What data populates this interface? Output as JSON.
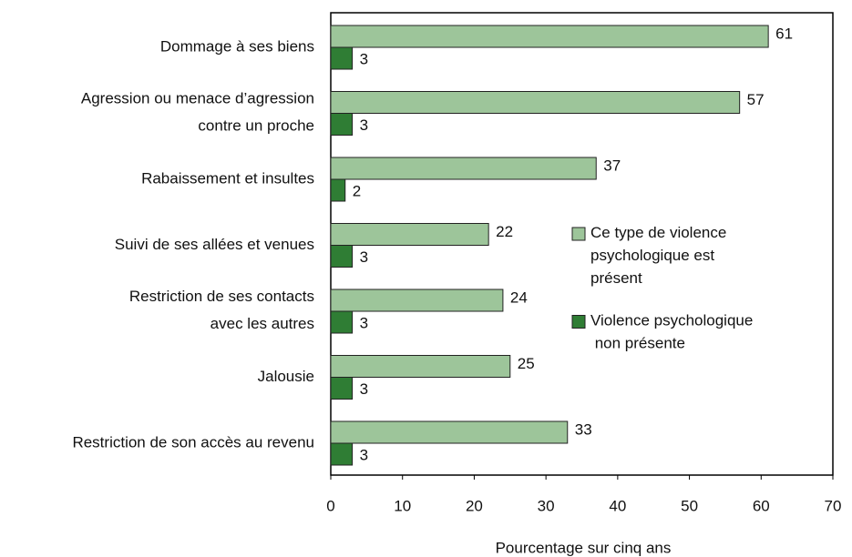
{
  "chart_data": {
    "type": "bar",
    "orientation": "horizontal",
    "x_label": "Pourcentage sur cinq ans",
    "categories": [
      "Dommage à ses biens",
      "Agression ou menace d’agression\ncontre un proche",
      "Rabaissement et insultes",
      "Suivi de ses allées et venues",
      "Restriction de ses contacts\navec les autres",
      "Jalousie",
      "Restriction de son accès au revenu"
    ],
    "series": [
      {
        "name": "Ce type de violence\npsychologique est\nprésent",
        "color": "#9dc59a",
        "values": [
          61,
          57,
          37,
          22,
          24,
          25,
          33
        ]
      },
      {
        "name": "Violence psychologique\n non présente",
        "color": "#2f7d34",
        "values": [
          3,
          3,
          2,
          3,
          3,
          3,
          3
        ]
      }
    ],
    "xlim": [
      0,
      70
    ],
    "xticks": [
      0,
      10,
      20,
      30,
      40,
      50,
      60,
      70
    ],
    "legend": "right"
  }
}
